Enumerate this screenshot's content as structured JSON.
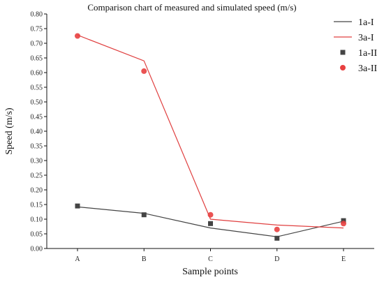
{
  "chart_data": {
    "type": "line",
    "title": "Comparison chart of measured and simulated speed (m/s)",
    "xlabel": "Sample points",
    "ylabel": "Speed (m/s)",
    "categories": [
      "A",
      "B",
      "C",
      "D",
      "E"
    ],
    "ylim": [
      0,
      0.8
    ],
    "yticks": [
      "0.00",
      "0.05",
      "0.10",
      "0.15",
      "0.20",
      "0.25",
      "0.30",
      "0.35",
      "0.40",
      "0.45",
      "0.50",
      "0.55",
      "0.60",
      "0.65",
      "0.70",
      "0.75",
      "0.80"
    ],
    "grid": false,
    "legend_position": "top-right",
    "series": [
      {
        "name": "1a-I",
        "kind": "line",
        "color": "#444444",
        "values": [
          0.142,
          0.12,
          0.07,
          0.04,
          0.093
        ]
      },
      {
        "name": "3a-I",
        "kind": "line",
        "color": "#e04040",
        "values": [
          0.728,
          0.64,
          0.1,
          0.08,
          0.07
        ]
      },
      {
        "name": "1a-II",
        "kind": "square",
        "color": "#444444",
        "values": [
          0.145,
          0.115,
          0.085,
          0.035,
          0.095
        ]
      },
      {
        "name": "3a-II",
        "kind": "circle",
        "color": "#e84040",
        "values": [
          0.725,
          0.605,
          0.115,
          0.065,
          0.085
        ]
      }
    ]
  }
}
